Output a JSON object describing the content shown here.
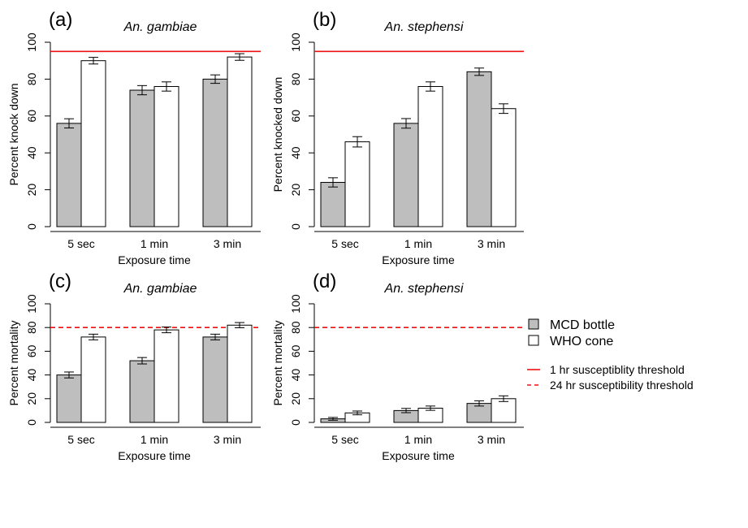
{
  "colors": {
    "mcd_fill": "#bebebe",
    "who_fill": "#ffffff",
    "bar_stroke": "#000000",
    "threshold": "#ee1111"
  },
  "legend": {
    "mcd": "MCD bottle",
    "who": "WHO cone",
    "thr1": "1 hr susceptiblity threshold",
    "thr24": "24 hr susceptibility threshold"
  },
  "chart_data": [
    {
      "panel": "(a)",
      "title": "An. gambiae",
      "type": "bar",
      "ylabel": "Percent knock down",
      "xlabel": "Exposure time",
      "categories": [
        "5 sec",
        "1 min",
        "3 min"
      ],
      "ylim": [
        0,
        100
      ],
      "yticks": [
        0,
        20,
        40,
        60,
        80,
        100
      ],
      "series": [
        {
          "name": "MCD bottle",
          "values": [
            56,
            74,
            80
          ],
          "errors": [
            2.5,
            2.5,
            2.3
          ]
        },
        {
          "name": "WHO cone",
          "values": [
            90,
            76,
            92
          ],
          "errors": [
            1.8,
            2.5,
            1.8
          ]
        }
      ],
      "threshold": {
        "value": 95,
        "style": "solid",
        "name": "1 hr susceptiblity threshold"
      }
    },
    {
      "panel": "(b)",
      "title": "An. stephensi",
      "type": "bar",
      "ylabel": "Percent knocked down",
      "xlabel": "Exposure time",
      "categories": [
        "5 sec",
        "1 min",
        "3 min"
      ],
      "ylim": [
        0,
        100
      ],
      "yticks": [
        0,
        20,
        40,
        60,
        80,
        100
      ],
      "series": [
        {
          "name": "MCD bottle",
          "values": [
            24,
            56,
            84
          ],
          "errors": [
            2.5,
            2.6,
            2.0
          ]
        },
        {
          "name": "WHO cone",
          "values": [
            46,
            76,
            64
          ],
          "errors": [
            2.8,
            2.5,
            2.6
          ]
        }
      ],
      "threshold": {
        "value": 95,
        "style": "solid",
        "name": "1 hr susceptiblity threshold"
      }
    },
    {
      "panel": "(c)",
      "title": "An. gambiae",
      "type": "bar",
      "ylabel": "Percent mortality",
      "xlabel": "Exposure time",
      "categories": [
        "5 sec",
        "1 min",
        "3 min"
      ],
      "ylim": [
        0,
        100
      ],
      "yticks": [
        0,
        20,
        40,
        60,
        80,
        100
      ],
      "series": [
        {
          "name": "MCD bottle",
          "values": [
            40,
            52,
            72
          ],
          "errors": [
            2.5,
            2.7,
            2.4
          ]
        },
        {
          "name": "WHO cone",
          "values": [
            72,
            78,
            82
          ],
          "errors": [
            2.4,
            2.4,
            2.2
          ]
        }
      ],
      "threshold": {
        "value": 80,
        "style": "dashed",
        "name": "24 hr susceptibility threshold"
      }
    },
    {
      "panel": "(d)",
      "title": "An. stephensi",
      "type": "bar",
      "ylabel": "Percent mortality",
      "xlabel": "Exposure time",
      "categories": [
        "5 sec",
        "1 min",
        "3 min"
      ],
      "ylim": [
        0,
        100
      ],
      "yticks": [
        0,
        20,
        40,
        60,
        80,
        100
      ],
      "series": [
        {
          "name": "MCD bottle",
          "values": [
            3,
            10,
            16
          ],
          "errors": [
            1.2,
            1.8,
            2.2
          ]
        },
        {
          "name": "WHO cone",
          "values": [
            8,
            12,
            20
          ],
          "errors": [
            1.6,
            1.8,
            2.4
          ]
        }
      ],
      "threshold": {
        "value": 80,
        "style": "dashed",
        "name": "24 hr susceptibility threshold"
      }
    }
  ]
}
